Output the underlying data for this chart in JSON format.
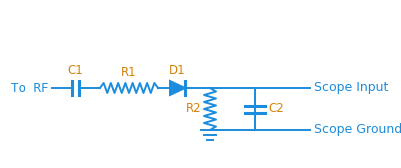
{
  "bg_color": "#ffffff",
  "line_color": "#1c8cdc",
  "text_color_orange": "#d4820a",
  "text_color_blue": "#1c8cdc",
  "text_color_black": "#1a1a1a",
  "fig_width": 4.02,
  "fig_height": 1.68,
  "dpi": 100,
  "rf_label": "To RF",
  "c1_label": "C1",
  "r1_label": "R1",
  "d1_label": "D1",
  "r2_label": "R2",
  "c2_label": "C2",
  "scope_input_label": "Scope Input",
  "scope_ground_label": "Scope Ground"
}
